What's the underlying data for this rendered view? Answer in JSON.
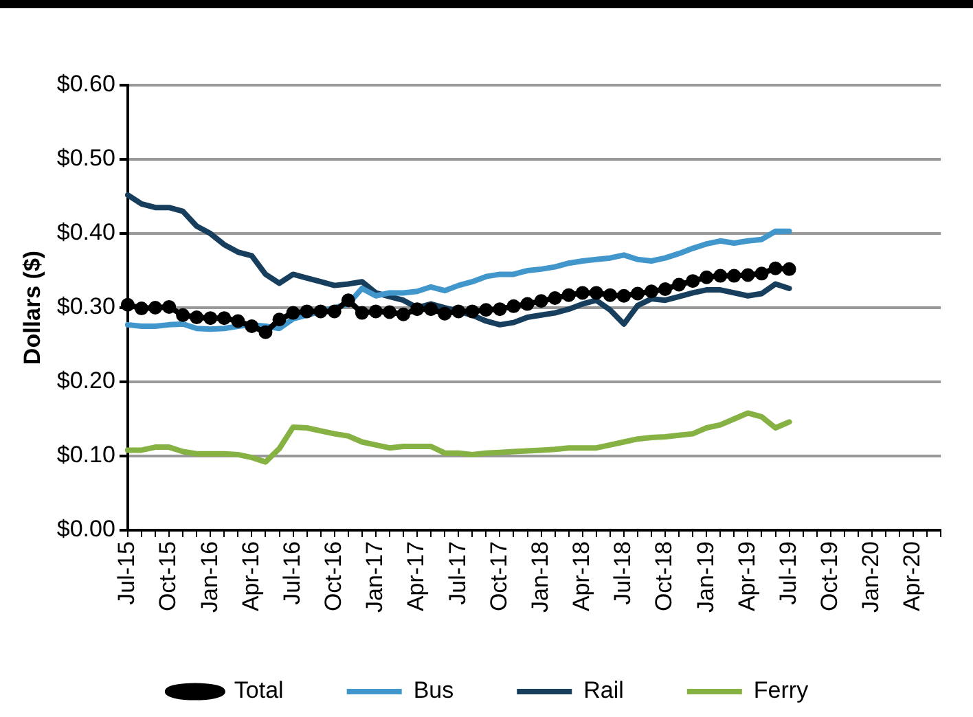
{
  "chart_data": {
    "type": "line",
    "ylabel": "Dollars ($)",
    "categories": [
      "Jul-15",
      null,
      null,
      "Oct-15",
      null,
      null,
      "Jan-16",
      null,
      null,
      "Apr-16",
      null,
      null,
      "Jul-16",
      null,
      null,
      "Oct-16",
      null,
      null,
      "Jan-17",
      null,
      null,
      "Apr-17",
      null,
      null,
      "Jul-17",
      null,
      null,
      "Oct-17",
      null,
      null,
      "Jan-18",
      null,
      null,
      "Apr-18",
      null,
      null,
      "Jul-18",
      null,
      null,
      "Oct-18",
      null,
      null,
      "Jan-19",
      null,
      null,
      "Apr-19",
      null,
      null,
      "Jul-19",
      null,
      null,
      "Oct-19",
      null,
      null,
      "Jan-20",
      null,
      null,
      "Apr-20",
      null,
      null
    ],
    "series": [
      {
        "name": "Bus",
        "color": "#4196cc",
        "marker": "none",
        "values": [
          0.277,
          0.275,
          0.275,
          0.277,
          0.278,
          0.272,
          0.271,
          0.272,
          0.275,
          0.277,
          0.275,
          0.272,
          0.285,
          0.29,
          0.295,
          0.3,
          0.305,
          0.326,
          0.316,
          0.32,
          0.32,
          0.322,
          0.328,
          0.323,
          0.33,
          0.335,
          0.342,
          0.345,
          0.345,
          0.35,
          0.352,
          0.355,
          0.36,
          0.363,
          0.365,
          0.367,
          0.371,
          0.365,
          0.363,
          0.367,
          0.373,
          0.38,
          0.386,
          0.39,
          0.387,
          0.39,
          0.392,
          0.403,
          0.403,
          null,
          null,
          null,
          null,
          null,
          null,
          null,
          null,
          null,
          null,
          null
        ]
      },
      {
        "name": "Rail",
        "color": "#173e5d",
        "marker": "none",
        "values": [
          0.452,
          0.44,
          0.435,
          0.435,
          0.43,
          0.41,
          0.4,
          0.385,
          0.375,
          0.37,
          0.345,
          0.333,
          0.345,
          0.34,
          0.335,
          0.33,
          0.332,
          0.335,
          0.32,
          0.315,
          0.31,
          0.3,
          0.305,
          0.3,
          0.295,
          0.29,
          0.282,
          0.277,
          0.28,
          0.287,
          0.29,
          0.293,
          0.298,
          0.305,
          0.31,
          0.297,
          0.278,
          0.303,
          0.312,
          0.31,
          0.315,
          0.32,
          0.324,
          0.324,
          0.32,
          0.316,
          0.319,
          0.332,
          0.326,
          null,
          null,
          null,
          null,
          null,
          null,
          null,
          null,
          null,
          null,
          null
        ]
      },
      {
        "name": "Ferry",
        "color": "#86b143",
        "marker": "none",
        "values": [
          0.108,
          0.108,
          0.112,
          0.112,
          0.106,
          0.103,
          0.103,
          0.103,
          0.102,
          0.098,
          0.092,
          0.11,
          0.139,
          0.138,
          0.134,
          0.13,
          0.127,
          0.119,
          0.115,
          0.111,
          0.113,
          0.113,
          0.113,
          0.104,
          0.104,
          0.102,
          0.104,
          0.105,
          0.106,
          0.107,
          0.108,
          0.109,
          0.111,
          0.111,
          0.111,
          0.115,
          0.119,
          0.123,
          0.125,
          0.126,
          0.128,
          0.13,
          0.138,
          0.142,
          0.15,
          0.158,
          0.153,
          0.138,
          0.146,
          null,
          null,
          null,
          null,
          null,
          null,
          null,
          null,
          null,
          null,
          null
        ]
      },
      {
        "name": "Total",
        "color": "#000000",
        "marker": "circle",
        "values": [
          0.304,
          0.299,
          0.3,
          0.301,
          0.29,
          0.287,
          0.286,
          0.286,
          0.282,
          0.275,
          0.267,
          0.284,
          0.293,
          0.295,
          0.295,
          0.295,
          0.31,
          0.293,
          0.295,
          0.294,
          0.291,
          0.298,
          0.298,
          0.292,
          0.295,
          0.295,
          0.297,
          0.298,
          0.302,
          0.305,
          0.309,
          0.313,
          0.317,
          0.32,
          0.32,
          0.317,
          0.316,
          0.319,
          0.322,
          0.325,
          0.331,
          0.336,
          0.341,
          0.343,
          0.343,
          0.344,
          0.346,
          0.353,
          0.352,
          null,
          null,
          null,
          null,
          null,
          null,
          null,
          null,
          null,
          null,
          null
        ]
      }
    ],
    "ylim": [
      0,
      0.6
    ],
    "yticks": [
      {
        "value": 0,
        "label": "$0.00"
      },
      {
        "value": 0.1,
        "label": "$0.10"
      },
      {
        "value": 0.2,
        "label": "$0.20"
      },
      {
        "value": 0.3,
        "label": "$0.30"
      },
      {
        "value": 0.4,
        "label": "$0.40"
      },
      {
        "value": 0.5,
        "label": "$0.50"
      },
      {
        "value": 0.6,
        "label": "$0.60"
      }
    ],
    "grid": "y",
    "legend": "bottom",
    "line_style": "solid"
  }
}
